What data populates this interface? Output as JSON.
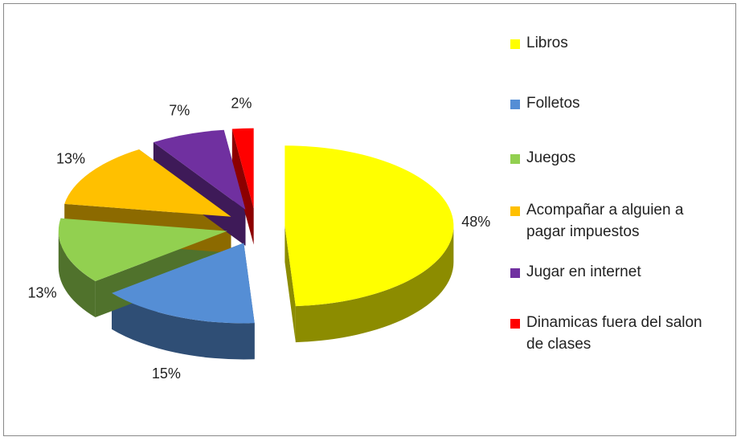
{
  "chart_data": {
    "type": "pie",
    "categories": [
      "Libros",
      "Folletos",
      "Juegos",
      "Acompañar a alguien a pagar impuestos",
      "Jugar en internet",
      "Dinamicas fuera del salon de clases"
    ],
    "values": [
      48,
      15,
      13,
      13,
      7,
      2
    ],
    "value_labels": [
      "48%",
      "15%",
      "13%",
      "13%",
      "7%",
      "2%"
    ],
    "colors": [
      "#ffff00",
      "#558ed5",
      "#92d050",
      "#ffc000",
      "#7030a0",
      "#ff0000"
    ],
    "legend": "right"
  }
}
